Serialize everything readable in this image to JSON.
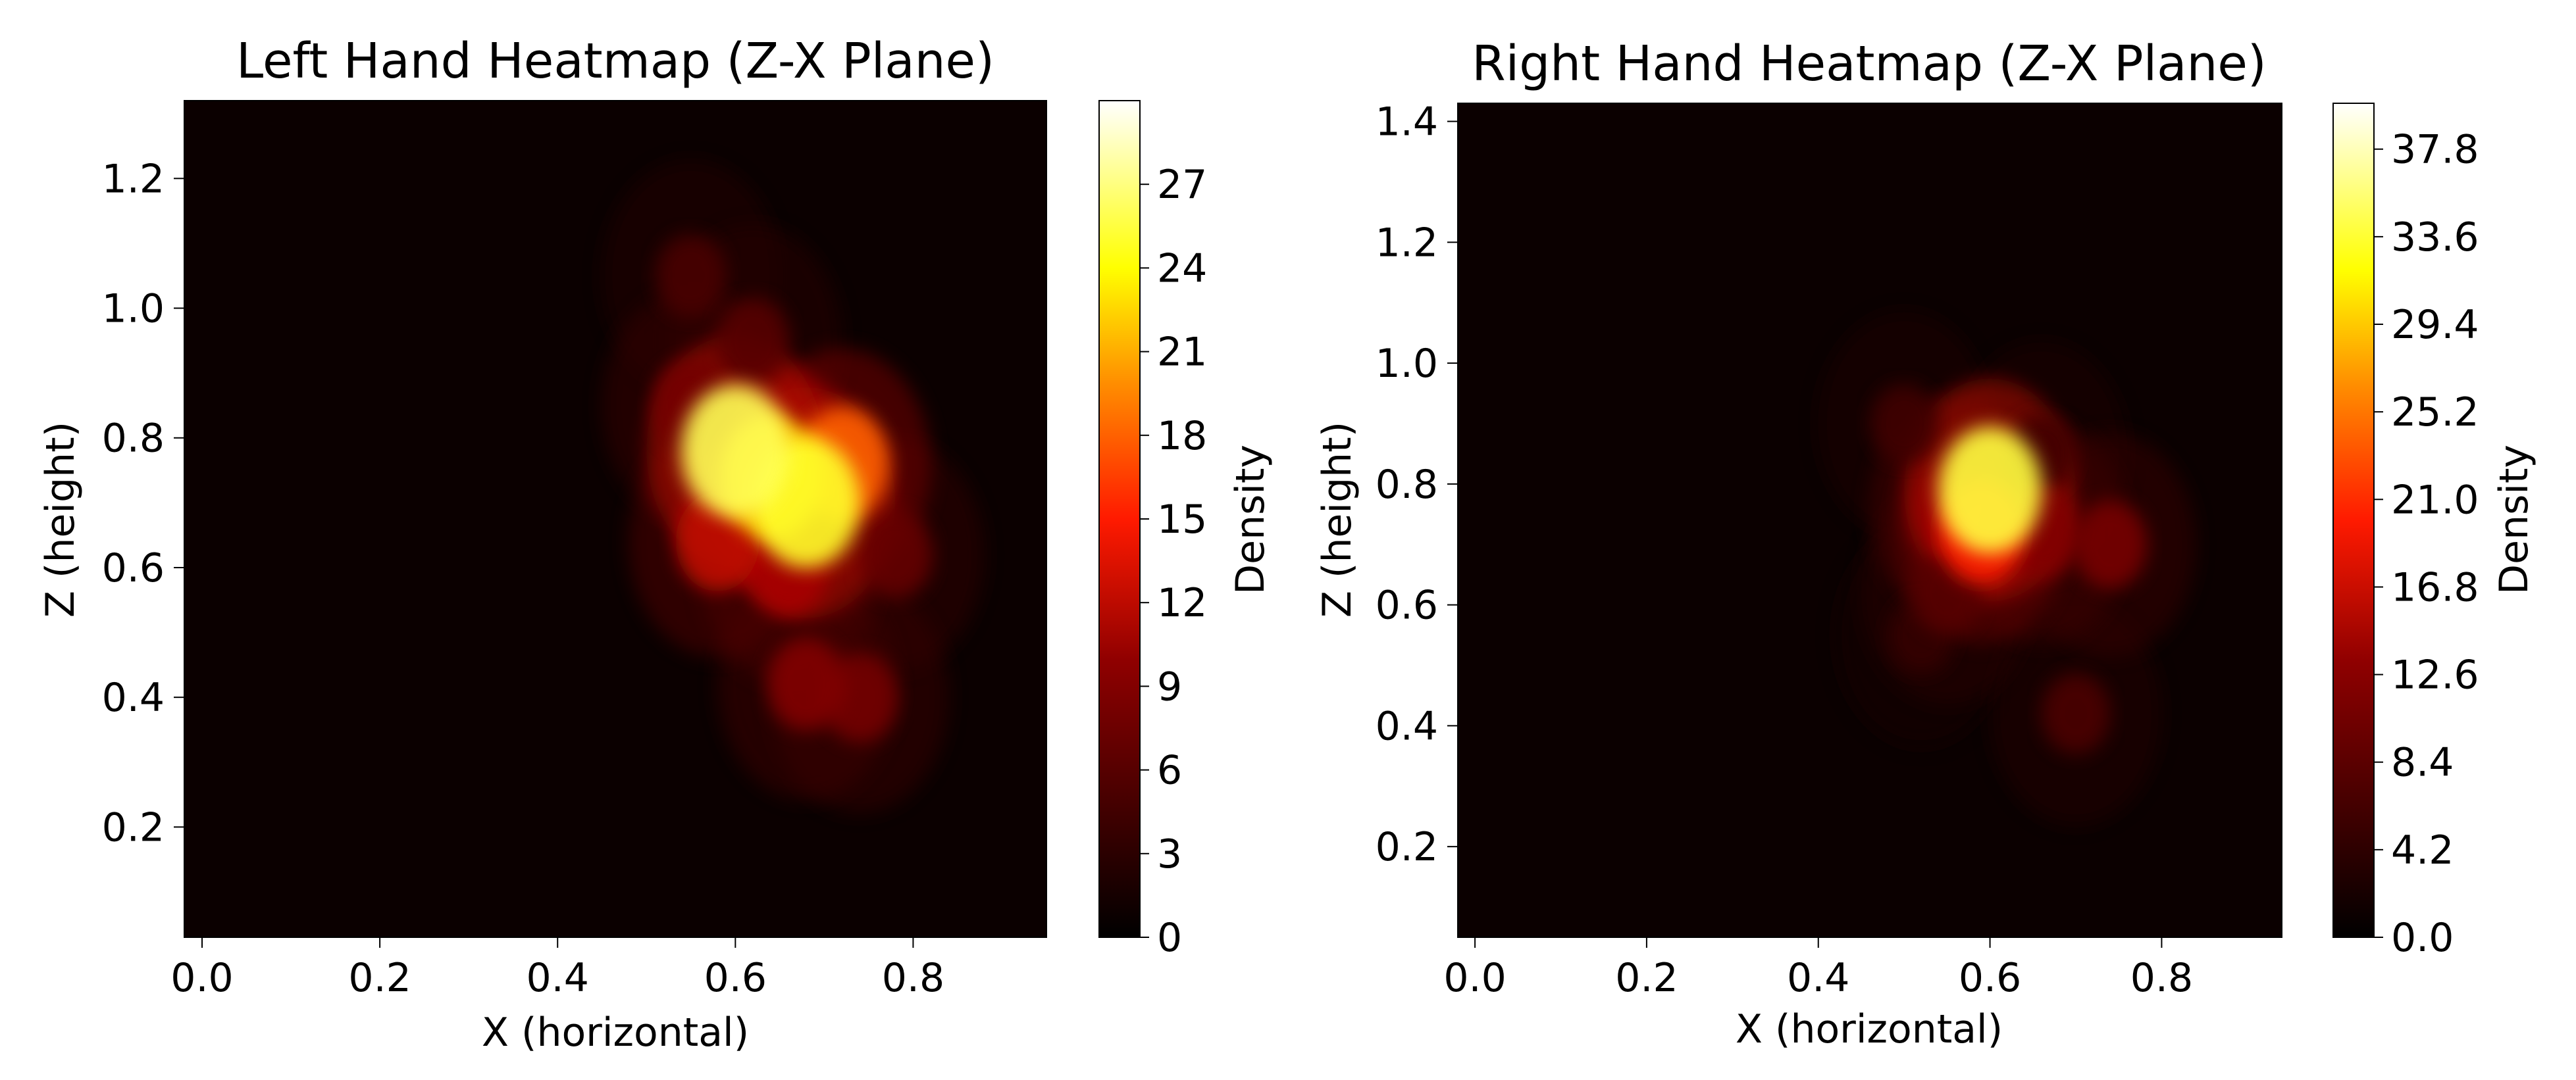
{
  "chart_data": [
    {
      "type": "heatmap",
      "title": "Left Hand Heatmap (Z-X Plane)",
      "xlabel": "X (horizontal)",
      "ylabel": "Z (height)",
      "xlim": [
        -0.02,
        0.95
      ],
      "ylim": [
        0.03,
        1.32
      ],
      "xticks": [
        "0.0",
        "0.2",
        "0.4",
        "0.6",
        "0.8"
      ],
      "xtick_values": [
        0.0,
        0.2,
        0.4,
        0.6,
        0.8
      ],
      "yticks": [
        "0.2",
        "0.4",
        "0.6",
        "0.8",
        "1.0",
        "1.2"
      ],
      "ytick_values": [
        0.2,
        0.4,
        0.6,
        0.8,
        1.0,
        1.2
      ],
      "colorbar": {
        "label": "Density",
        "range": [
          0,
          30
        ],
        "ticks": [
          "0",
          "3",
          "6",
          "9",
          "12",
          "15",
          "18",
          "21",
          "24",
          "27"
        ],
        "tick_values": [
          0,
          3,
          6,
          9,
          12,
          15,
          18,
          21,
          24,
          27
        ]
      },
      "colormap": [
        "#000000",
        "#6a0000",
        "#d40000",
        "#ff3f00",
        "#ff9f00",
        "#ffff00",
        "#ffffff"
      ],
      "background_color": "#0b0000",
      "hotspots": [
        {
          "x": 0.6,
          "z": 0.78,
          "density": 26
        },
        {
          "x": 0.68,
          "z": 0.7,
          "density": 25
        },
        {
          "x": 0.64,
          "z": 0.74,
          "density": 22
        },
        {
          "x": 0.72,
          "z": 0.76,
          "density": 18
        },
        {
          "x": 0.58,
          "z": 0.64,
          "density": 12
        },
        {
          "x": 0.66,
          "z": 0.6,
          "density": 11
        },
        {
          "x": 0.55,
          "z": 0.85,
          "density": 8
        },
        {
          "x": 0.68,
          "z": 0.42,
          "density": 9
        },
        {
          "x": 0.74,
          "z": 0.4,
          "density": 8
        },
        {
          "x": 0.62,
          "z": 0.95,
          "density": 6
        },
        {
          "x": 0.78,
          "z": 0.62,
          "density": 7
        },
        {
          "x": 0.55,
          "z": 1.05,
          "density": 5
        }
      ]
    },
    {
      "type": "heatmap",
      "title": "Right Hand Heatmap (Z-X Plane)",
      "xlabel": "X (horizontal)",
      "ylabel": "Z (height)",
      "xlim": [
        -0.02,
        0.94
      ],
      "ylim": [
        0.05,
        1.43
      ],
      "xticks": [
        "0.0",
        "0.2",
        "0.4",
        "0.6",
        "0.8"
      ],
      "xtick_values": [
        0.0,
        0.2,
        0.4,
        0.6,
        0.8
      ],
      "yticks": [
        "0.2",
        "0.4",
        "0.6",
        "0.8",
        "1.0",
        "1.2",
        "1.4"
      ],
      "ytick_values": [
        0.2,
        0.4,
        0.6,
        0.8,
        1.0,
        1.2,
        1.4
      ],
      "colorbar": {
        "label": "Density",
        "range": [
          0,
          40
        ],
        "ticks": [
          "0.0",
          "4.2",
          "8.4",
          "12.6",
          "16.8",
          "21.0",
          "25.2",
          "29.4",
          "33.6",
          "37.8"
        ],
        "tick_values": [
          0.0,
          4.2,
          8.4,
          12.6,
          16.8,
          21.0,
          25.2,
          29.4,
          33.6,
          37.8
        ]
      },
      "colormap": [
        "#000000",
        "#6a0000",
        "#d40000",
        "#ff3f00",
        "#ff9f00",
        "#ffff00",
        "#ffffff"
      ],
      "background_color": "#0b0000",
      "hotspots": [
        {
          "x": 0.6,
          "z": 0.79,
          "density": 34
        },
        {
          "x": 0.59,
          "z": 0.72,
          "density": 20
        },
        {
          "x": 0.56,
          "z": 0.76,
          "density": 14
        },
        {
          "x": 0.66,
          "z": 0.72,
          "density": 12
        },
        {
          "x": 0.74,
          "z": 0.7,
          "density": 11
        },
        {
          "x": 0.55,
          "z": 0.62,
          "density": 8
        },
        {
          "x": 0.7,
          "z": 0.42,
          "density": 7
        },
        {
          "x": 0.5,
          "z": 0.9,
          "density": 6
        },
        {
          "x": 0.66,
          "z": 0.85,
          "density": 6
        },
        {
          "x": 0.52,
          "z": 0.55,
          "density": 5
        }
      ]
    }
  ]
}
